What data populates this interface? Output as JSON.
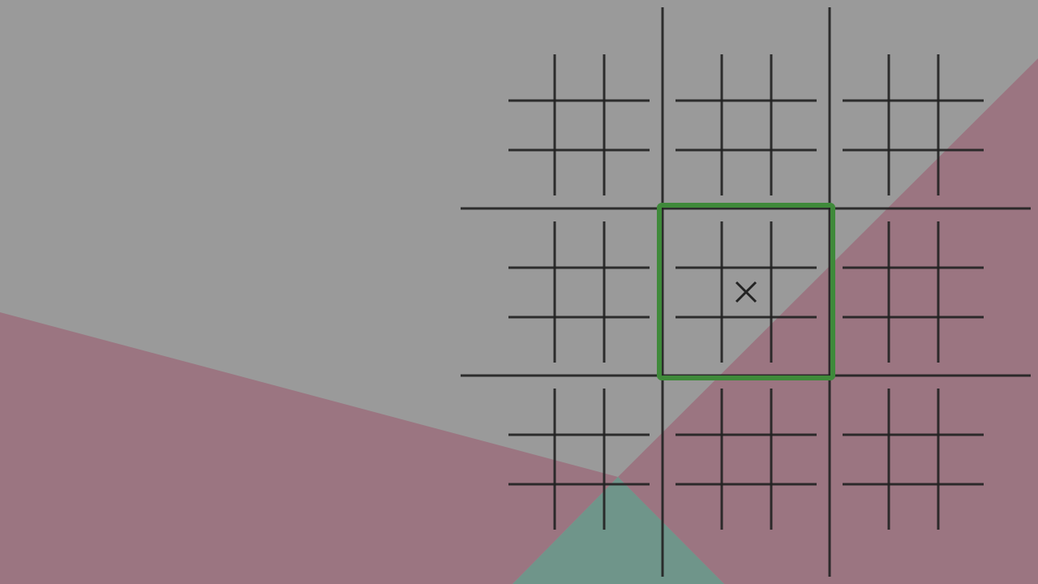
{
  "game": {
    "name": "ultimate-tic-tac-toe",
    "colors": {
      "background": "#9a9a9a",
      "grid_line": "#232323",
      "active_board_outline": "#3f8a3a",
      "overlay_rose": "#9b7581",
      "overlay_teal": "#6f958a",
      "mark": "#232323"
    },
    "active_board": {
      "row": 1,
      "col": 1
    },
    "marks": [
      {
        "board_row": 1,
        "board_col": 1,
        "cell_row": 1,
        "cell_col": 1,
        "symbol": "x-mark"
      }
    ]
  }
}
